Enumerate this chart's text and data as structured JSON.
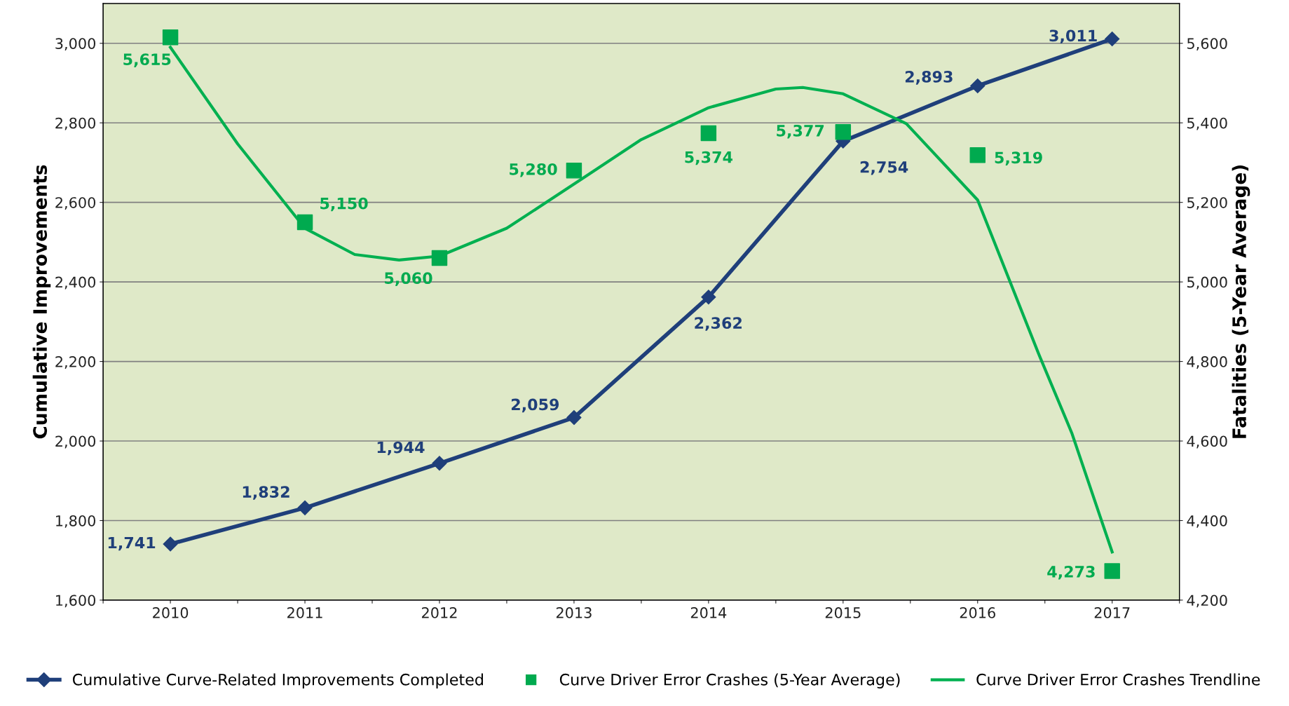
{
  "chart_data": {
    "type": "line",
    "x": [
      2010,
      2011,
      2012,
      2013,
      2014,
      2015,
      2016,
      2017
    ],
    "xlim": [
      2009.5,
      2017.5
    ],
    "xticks": [
      2010,
      2011,
      2012,
      2013,
      2014,
      2015,
      2016,
      2017,
      {
        "value": 2009.5,
        "label": null
      },
      {
        "value": 2010.5,
        "label": null
      },
      {
        "value": 2011.5,
        "label": null
      },
      {
        "value": 2012.5,
        "label": null
      },
      {
        "value": 2013.5,
        "label": null
      },
      {
        "value": 2014.5,
        "label": null
      },
      {
        "value": 2015.5,
        "label": null
      },
      {
        "value": 2016.5,
        "label": null
      },
      {
        "value": 2017.5,
        "label": null
      }
    ],
    "ylabel": "Cumulative Improvements",
    "y2label": "Fatalities (5-Year Average)",
    "ylim": [
      1600,
      3100
    ],
    "yticks": [
      {
        "value": 1600,
        "label": "1,600"
      },
      {
        "value": 1800,
        "label": "1,800"
      },
      {
        "value": 2000,
        "label": "2,000"
      },
      {
        "value": 2200,
        "label": "2,200"
      },
      {
        "value": 2400,
        "label": "2,400"
      },
      {
        "value": 2600,
        "label": "2,600"
      },
      {
        "value": 2800,
        "label": "2,800"
      },
      {
        "value": 3000,
        "label": "3,000"
      }
    ],
    "y2lim": [
      4200,
      5700
    ],
    "y2ticks": [
      {
        "value": 4200,
        "label": "4,200"
      },
      {
        "value": 4400,
        "label": "4,400"
      },
      {
        "value": 4600,
        "label": "4,600"
      },
      {
        "value": 4800,
        "label": "4,800"
      },
      {
        "value": 5000,
        "label": "5,000"
      },
      {
        "value": 5200,
        "label": "5,200"
      },
      {
        "value": 5400,
        "label": "5,400"
      },
      {
        "value": 5600,
        "label": "5,600"
      }
    ],
    "grid": "y",
    "legend": "bottom",
    "series": [
      {
        "name": "Cumulative Curve-Related Improvements Completed",
        "color": "#1f3f7a",
        "marker": "diamond",
        "values": [
          1741,
          1832,
          1944,
          2059,
          2362,
          2754,
          2893,
          3011
        ],
        "value_labels": [
          "1,741",
          "1,832",
          "1,944",
          "2,059",
          "2,362",
          "2,754",
          "2,893",
          "3,011"
        ]
      },
      {
        "name": "Curve Driver Error Crashes (5-Year Average)",
        "type": "scatter",
        "axis": "y2",
        "color": "#00aa4f",
        "marker": "square",
        "values": [
          5615,
          5150,
          5060,
          5280,
          5374,
          5377,
          5319,
          4273
        ],
        "value_labels": [
          "5,615",
          "5,150",
          "5,060",
          "5,280",
          "5,374",
          "5,377",
          "5,319",
          "4,273"
        ]
      },
      {
        "name": "Curve Driver Error Crashes Trendline",
        "type": "line",
        "axis": "y2",
        "color": "#00b050",
        "marker": "none",
        "x": [
          2010,
          2010.5,
          2011,
          2011.37,
          2011.7,
          2012,
          2012.5,
          2013,
          2013.5,
          2014,
          2014.5,
          2014.7,
          2015,
          2015.47,
          2016,
          2016.45,
          2016.7,
          2017
        ],
        "values": [
          5590,
          5347,
          5135,
          5069,
          5055,
          5065,
          5135,
          5246,
          5358,
          5438,
          5485,
          5489,
          5473,
          5398,
          5206,
          4822,
          4620,
          4321
        ]
      }
    ]
  }
}
